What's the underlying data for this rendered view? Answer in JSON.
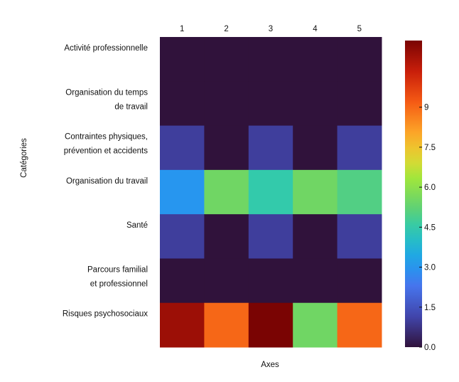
{
  "chart_data": {
    "type": "heatmap",
    "xlabel": "Axes",
    "ylabel": "Catégories",
    "x_categories": [
      "1",
      "2",
      "3",
      "4",
      "5"
    ],
    "y_categories": [
      [
        "Activité professionnelle"
      ],
      [
        "Organisation du temps",
        "de travail"
      ],
      [
        "Contraintes physiques,",
        "prévention et accidents"
      ],
      [
        "Organisation du travail"
      ],
      [
        "Santé"
      ],
      [
        "Parcours familial",
        "et professionnel"
      ],
      [
        "Risques psychosociaux"
      ]
    ],
    "values": [
      [
        0,
        0,
        0,
        0,
        0
      ],
      [
        0,
        0,
        0,
        0,
        0
      ],
      [
        1,
        0,
        1,
        0,
        1
      ],
      [
        3,
        5.5,
        4.5,
        5.5,
        5
      ],
      [
        1,
        0,
        1,
        0,
        1
      ],
      [
        0,
        0,
        0,
        0,
        0
      ],
      [
        11,
        9,
        11.5,
        5.5,
        9
      ]
    ],
    "colorbar": {
      "range": [
        0,
        11.5
      ],
      "ticks": [
        0,
        1.5,
        3,
        4.5,
        6,
        7.5,
        9
      ],
      "tick_labels": [
        "0.0",
        "1.5",
        "3.0",
        "4.5",
        "6.0",
        "7.5",
        "9"
      ],
      "colormap": "turbo"
    },
    "grid": false,
    "legend": "colorbar-right"
  }
}
